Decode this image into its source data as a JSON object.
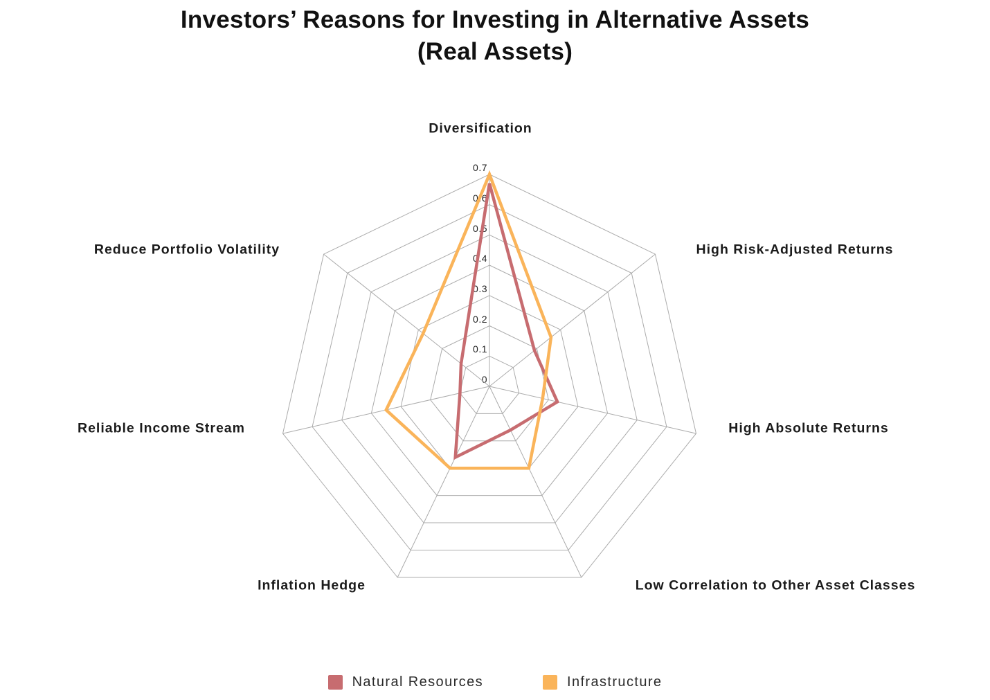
{
  "title": {
    "line1": "Investors’ Reasons for Investing in Alternative Assets",
    "line2": "(Real Assets)"
  },
  "chart_data": {
    "type": "radar",
    "categories": [
      "Diversification",
      "High Risk-Adjusted Returns",
      "High Absolute Returns",
      "Low Correlation to Other Asset Classes",
      "Inflation Hedge",
      "Reliable Income Stream",
      "Reduce Portfolio Volatility"
    ],
    "series": [
      {
        "name": "Natural Resources",
        "color": "#C76C70",
        "values": [
          0.67,
          0.19,
          0.23,
          0.16,
          0.26,
          0.1,
          0.12
        ]
      },
      {
        "name": "Infrastructure",
        "color": "#FAB45A",
        "values": [
          0.7,
          0.26,
          0.18,
          0.3,
          0.3,
          0.35,
          0.28
        ]
      }
    ],
    "radial_ticks": [
      0,
      0.1,
      0.2,
      0.3,
      0.4,
      0.5,
      0.6,
      0.7
    ],
    "tick_labels": [
      "0",
      "0.1",
      "0.2",
      "0.3",
      "0.4",
      "0.5",
      "0.6",
      "0.7"
    ],
    "rmax": 0.7,
    "grid_on": true,
    "grid_color": "#ABABAB",
    "legend_position": "bottom"
  },
  "legend": {
    "items": [
      {
        "label": "Natural Resources",
        "color": "#C76C70"
      },
      {
        "label": "Infrastructure",
        "color": "#FAB45A"
      }
    ]
  }
}
